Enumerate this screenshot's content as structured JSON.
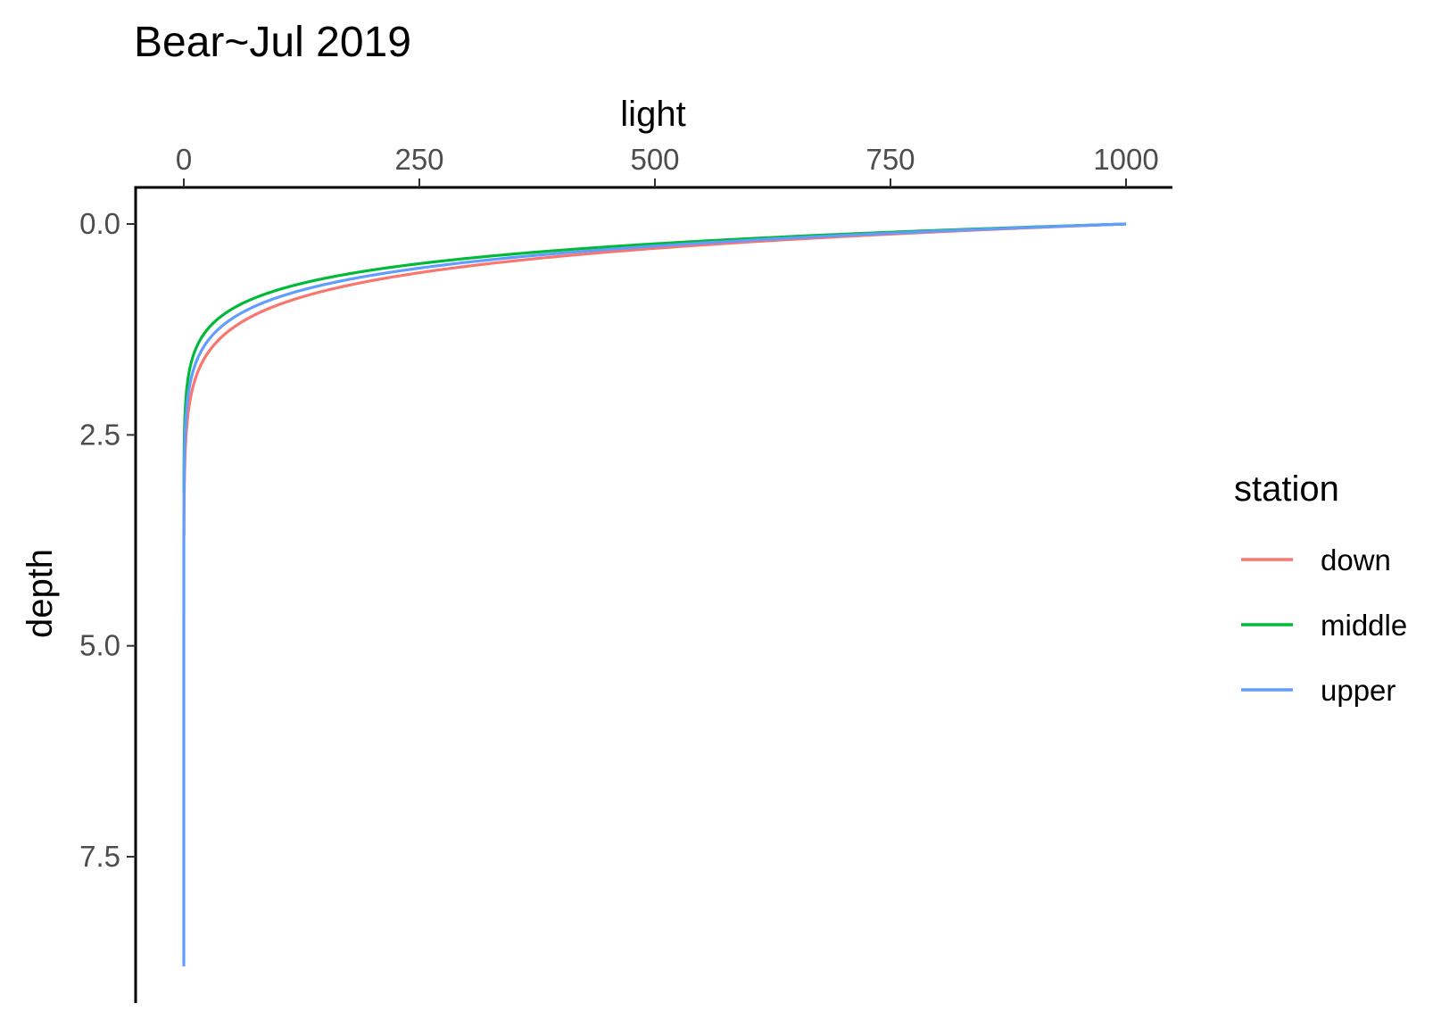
{
  "chart_data": {
    "type": "line",
    "title": "Bear~Jul 2019",
    "xlabel": "light",
    "ylabel": "depth",
    "x_axis_position": "top",
    "y_axis_reversed": true,
    "xlim": [
      -12,
      1050
    ],
    "ylim": [
      0,
      9.25
    ],
    "x_ticks": [
      0,
      250,
      500,
      750,
      1000
    ],
    "x_tick_labels": [
      "0",
      "250",
      "500",
      "750",
      "1000"
    ],
    "y_ticks": [
      0,
      2.5,
      5,
      7.5
    ],
    "y_tick_labels": [
      "0.0",
      "2.5",
      "5.0",
      "7.5"
    ],
    "grid": false,
    "legend_title": "station",
    "legend_position": "right",
    "series": [
      {
        "name": "down",
        "color": "#F8766D",
        "surface_light": 1000,
        "extinction_coefficient": 2.4,
        "depth_range": [
          0,
          3.7
        ]
      },
      {
        "name": "middle",
        "color": "#00BA38",
        "surface_light": 1000,
        "extinction_coefficient": 2.95,
        "depth_range": [
          0,
          3.2
        ]
      },
      {
        "name": "upper",
        "color": "#619CFF",
        "surface_light": 1000,
        "extinction_coefficient": 2.65,
        "depth_range": [
          0,
          8.8
        ]
      }
    ]
  }
}
